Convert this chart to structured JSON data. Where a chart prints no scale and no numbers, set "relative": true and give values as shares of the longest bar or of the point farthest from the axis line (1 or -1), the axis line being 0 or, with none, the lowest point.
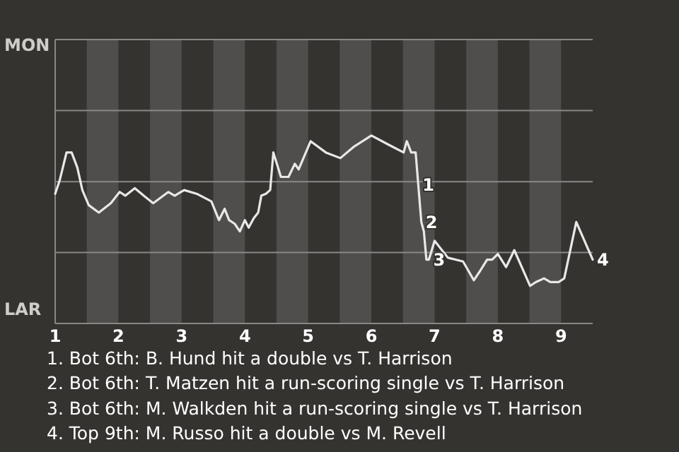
{
  "chart_data": {
    "type": "line",
    "relative": true,
    "x": [
      1.0,
      1.07,
      1.18,
      1.26,
      1.35,
      1.43,
      1.53,
      1.69,
      1.88,
      2.02,
      2.11,
      2.26,
      2.4,
      2.55,
      2.67,
      2.79,
      2.89,
      3.04,
      3.24,
      3.47,
      3.59,
      3.68,
      3.75,
      3.84,
      3.92,
      4.0,
      4.06,
      4.14,
      4.21,
      4.26,
      4.33,
      4.4,
      4.45,
      4.57,
      4.69,
      4.79,
      4.85,
      5.04,
      5.28,
      5.51,
      5.72,
      6.0,
      6.28,
      6.51,
      6.56,
      6.63,
      6.7,
      6.79,
      6.83,
      6.87,
      6.91,
      7.0,
      7.21,
      7.45,
      7.62,
      7.72,
      7.83,
      7.91,
      8.0,
      8.13,
      8.26,
      8.51,
      8.6,
      8.73,
      8.83,
      8.96,
      9.05,
      9.24,
      9.5
    ],
    "series": [
      {
        "color": "#e8e8e8",
        "values": [
          0.69,
          0.76,
          0.91,
          0.91,
          0.83,
          0.71,
          0.63,
          0.59,
          0.64,
          0.7,
          0.68,
          0.72,
          0.68,
          0.64,
          0.67,
          0.7,
          0.68,
          0.71,
          0.69,
          0.65,
          0.55,
          0.61,
          0.55,
          0.53,
          0.49,
          0.55,
          0.51,
          0.56,
          0.59,
          0.68,
          0.69,
          0.71,
          0.91,
          0.78,
          0.78,
          0.85,
          0.82,
          0.97,
          0.91,
          0.88,
          0.94,
          1,
          0.95,
          0.91,
          0.97,
          0.91,
          0.91,
          0.54,
          0.49,
          0.34,
          0.34,
          0.44,
          0.35,
          0.33,
          0.23,
          0.28,
          0.34,
          0.34,
          0.37,
          0.3,
          0.39,
          0.2,
          0.22,
          0.24,
          0.22,
          0.22,
          0.24,
          0.54,
          0.34
        ]
      }
    ],
    "xlim": [
      1,
      9.5
    ],
    "xticks": [
      1,
      2,
      3,
      4,
      5,
      6,
      7,
      8,
      9
    ],
    "marker": "none",
    "line_style": "solid",
    "ref_lines": [
      {
        "axis": "y",
        "value": 0.378,
        "color": "#8a8886"
      },
      {
        "axis": "y",
        "value": 0.755,
        "color": "#8a8886"
      },
      {
        "axis": "y",
        "value": 1.133,
        "color": "#8a8886"
      },
      {
        "axis": "y",
        "value": 1.511,
        "color": "#8a8886"
      }
    ],
    "bands": [
      {
        "axis": "x",
        "from": 1.5,
        "to": 2,
        "color": "#4f4e4c"
      },
      {
        "axis": "x",
        "from": 2.5,
        "to": 3,
        "color": "#4f4e4c"
      },
      {
        "axis": "x",
        "from": 3.5,
        "to": 4,
        "color": "#4f4e4c"
      },
      {
        "axis": "x",
        "from": 4.5,
        "to": 5,
        "color": "#4f4e4c"
      },
      {
        "axis": "x",
        "from": 5.5,
        "to": 6,
        "color": "#4f4e4c"
      },
      {
        "axis": "x",
        "from": 6.5,
        "to": 7,
        "color": "#4f4e4c"
      },
      {
        "axis": "x",
        "from": 7.5,
        "to": 8,
        "color": "#4f4e4c"
      },
      {
        "axis": "x",
        "from": 8.5,
        "to": 9,
        "color": "#4f4e4c"
      }
    ],
    "annotations": [
      {
        "text": "1",
        "x": 6.74,
        "y": 0.74
      },
      {
        "text": "2",
        "x": 6.79,
        "y": 0.54
      },
      {
        "text": "3",
        "x": 6.91,
        "y": 0.34
      },
      {
        "text": "4",
        "x": 9.5,
        "y": 0.34
      },
      "MON",
      "LAR",
      "1. Bot 6th: B. Hund hit a double vs T. Harrison",
      "2. Bot 6th: T. Matzen hit a run-scoring single vs T. Harrison",
      "3. Bot 6th: M. Walkden hit a run-scoring single vs T. Harrison",
      "4. Top 9th: M. Russo hit a double vs M. Revell"
    ]
  }
}
